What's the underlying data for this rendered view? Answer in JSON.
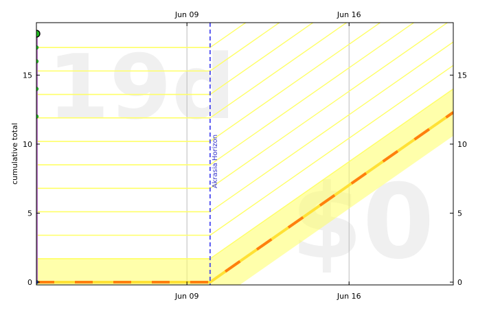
{
  "chart_data": {
    "type": "line",
    "title": "",
    "ylabel": "cumulative total",
    "xlabel": "",
    "x_start": "2013-06-02T12:00:00",
    "x_end": "2013-06-20T12:00:00",
    "ylim": [
      -0.2,
      18.8
    ],
    "x_ticks": [
      {
        "date": "2013-06-09",
        "label": "Jun 09"
      },
      {
        "date": "2013-06-16",
        "label": "Jun 16"
      }
    ],
    "y_ticks": [
      0,
      5,
      10,
      15
    ],
    "watermarks": {
      "days_left": "19d",
      "pledge": "$0"
    },
    "akrasia_horizon": {
      "date": "2013-06-10",
      "label": "Akrasia Horizon"
    },
    "yellow_brick_road": {
      "points": [
        {
          "date": "2013-06-02T12:00:00",
          "value": 0
        },
        {
          "date": "2013-06-10",
          "value": 0
        },
        {
          "date": "2013-06-20T12:00:00",
          "value": 12.3
        }
      ],
      "lane_width": 1.7,
      "color": "#ffff66",
      "centerline_color": "#ffe135",
      "dash_color": "#ff7f0e"
    },
    "guide_lines": [
      1.7,
      3.4,
      5.1,
      6.8,
      8.5,
      10.2,
      11.9,
      13.6,
      15.3,
      17.0
    ],
    "datapoints": [
      {
        "date": "2013-06-02T12:00:00",
        "value": 0
      },
      {
        "date": "2013-06-02T12:00:00",
        "value": 12
      },
      {
        "date": "2013-06-02T12:00:00",
        "value": 14
      },
      {
        "date": "2013-06-02T12:00:00",
        "value": 16
      },
      {
        "date": "2013-06-02T12:00:00",
        "value": 17
      },
      {
        "date": "2013-06-02T12:00:00",
        "value": 18
      }
    ],
    "current_value": 18,
    "colors": {
      "progress_line": "#b36fbf",
      "datapoint": "#22bb22",
      "datapoint_edge": "#006600",
      "horizon": "#3333ee",
      "grid": "#bbbbbb",
      "first_point": "#3333ee"
    },
    "grid": true
  }
}
